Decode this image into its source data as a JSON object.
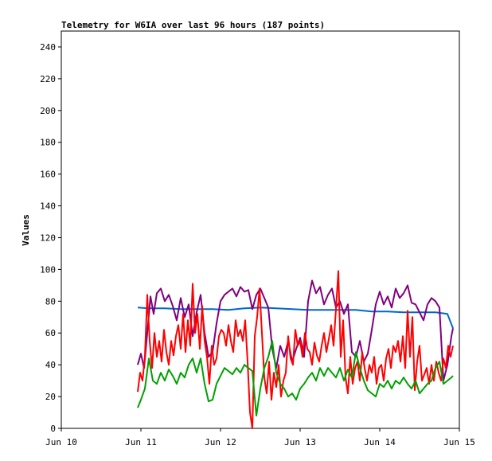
{
  "chart_data": {
    "type": "line",
    "title": "Telemetry for W6IA over last 96 hours (187 points)",
    "ylabel": "Values",
    "xlabel": "",
    "ylim": [
      0,
      250
    ],
    "xlim": [
      0,
      5
    ],
    "x_tick_labels": [
      "Jun 10",
      "Jun 11",
      "Jun 12",
      "Jun 13",
      "Jun 14",
      "Jun 15"
    ],
    "y_ticks": [
      0,
      20,
      40,
      60,
      80,
      100,
      120,
      140,
      160,
      180,
      200,
      220,
      240
    ],
    "grid": false,
    "series": [
      {
        "color": "#0066cc",
        "x": [
          0.96,
          1.1,
          1.3,
          1.5,
          1.7,
          1.9,
          2.1,
          2.3,
          2.5,
          2.7,
          2.9,
          3.1,
          3.3,
          3.5,
          3.7,
          3.9,
          4.1,
          4.3,
          4.5,
          4.7,
          4.85,
          4.92
        ],
        "y": [
          76,
          75.5,
          75.5,
          75,
          75,
          75,
          74.5,
          75.5,
          76,
          75.5,
          75,
          74.5,
          74.5,
          74.5,
          74.5,
          73.5,
          73.5,
          73,
          73,
          73,
          72,
          63
        ]
      },
      {
        "color": "#800080",
        "x": [
          0.96,
          1.0,
          1.04,
          1.08,
          1.12,
          1.16,
          1.2,
          1.25,
          1.3,
          1.35,
          1.4,
          1.45,
          1.5,
          1.55,
          1.6,
          1.65,
          1.7,
          1.75,
          1.8,
          1.85,
          1.9,
          1.95,
          2.0,
          2.05,
          2.1,
          2.15,
          2.2,
          2.25,
          2.3,
          2.35,
          2.4,
          2.45,
          2.5,
          2.55,
          2.6,
          2.65,
          2.7,
          2.75,
          2.8,
          2.85,
          2.9,
          2.95,
          3.0,
          3.05,
          3.1,
          3.15,
          3.2,
          3.25,
          3.3,
          3.35,
          3.4,
          3.45,
          3.5,
          3.55,
          3.6,
          3.65,
          3.7,
          3.75,
          3.8,
          3.85,
          3.9,
          3.95,
          4.0,
          4.05,
          4.1,
          4.15,
          4.2,
          4.25,
          4.3,
          4.35,
          4.4,
          4.45,
          4.5,
          4.55,
          4.6,
          4.65,
          4.7,
          4.75,
          4.8,
          4.85,
          4.9,
          4.92
        ],
        "y": [
          40,
          47,
          38,
          60,
          83,
          72,
          85,
          88,
          80,
          84,
          77,
          68,
          82,
          70,
          78,
          58,
          73,
          84,
          60,
          45,
          48,
          66,
          80,
          84,
          86,
          88,
          83,
          89,
          86,
          87,
          75,
          84,
          88,
          82,
          76,
          50,
          38,
          52,
          45,
          55,
          42,
          50,
          57,
          45,
          80,
          93,
          85,
          89,
          78,
          84,
          88,
          76,
          80,
          72,
          78,
          48,
          45,
          55,
          42,
          47,
          62,
          78,
          86,
          78,
          83,
          76,
          88,
          82,
          85,
          90,
          79,
          78,
          73,
          68,
          78,
          82,
          80,
          76,
          30,
          40,
          58,
          63
        ]
      },
      {
        "color": "#ff0000",
        "x": [
          0.96,
          0.99,
          1.02,
          1.05,
          1.08,
          1.11,
          1.14,
          1.17,
          1.2,
          1.23,
          1.26,
          1.29,
          1.32,
          1.35,
          1.38,
          1.41,
          1.44,
          1.47,
          1.5,
          1.53,
          1.56,
          1.59,
          1.62,
          1.65,
          1.68,
          1.71,
          1.74,
          1.77,
          1.8,
          1.83,
          1.86,
          1.89,
          1.92,
          1.95,
          1.98,
          2.01,
          2.04,
          2.07,
          2.1,
          2.13,
          2.16,
          2.19,
          2.22,
          2.25,
          2.28,
          2.31,
          2.34,
          2.37,
          2.4,
          2.43,
          2.46,
          2.49,
          2.52,
          2.55,
          2.58,
          2.61,
          2.64,
          2.67,
          2.7,
          2.73,
          2.76,
          2.79,
          2.82,
          2.85,
          2.88,
          2.91,
          2.94,
          2.97,
          3.0,
          3.03,
          3.06,
          3.09,
          3.12,
          3.15,
          3.18,
          3.21,
          3.24,
          3.27,
          3.3,
          3.33,
          3.36,
          3.39,
          3.42,
          3.45,
          3.48,
          3.51,
          3.54,
          3.57,
          3.6,
          3.63,
          3.66,
          3.69,
          3.72,
          3.75,
          3.78,
          3.81,
          3.84,
          3.87,
          3.9,
          3.93,
          3.96,
          3.99,
          4.02,
          4.05,
          4.08,
          4.11,
          4.14,
          4.17,
          4.2,
          4.23,
          4.26,
          4.29,
          4.32,
          4.35,
          4.38,
          4.41,
          4.44,
          4.47,
          4.5,
          4.53,
          4.56,
          4.59,
          4.62,
          4.65,
          4.68,
          4.71,
          4.74,
          4.77,
          4.8,
          4.83,
          4.86,
          4.89,
          4.92
        ],
        "y": [
          23,
          35,
          30,
          45,
          84,
          55,
          38,
          60,
          45,
          55,
          42,
          62,
          48,
          40,
          55,
          46,
          58,
          65,
          50,
          72,
          48,
          68,
          52,
          91,
          60,
          72,
          50,
          77,
          55,
          45,
          28,
          52,
          40,
          44,
          58,
          62,
          60,
          52,
          65,
          55,
          48,
          68,
          58,
          62,
          55,
          68,
          42,
          10,
          0,
          58,
          70,
          88,
          60,
          32,
          22,
          42,
          18,
          35,
          26,
          40,
          20,
          30,
          35,
          58,
          44,
          40,
          62,
          52,
          55,
          45,
          60,
          50,
          48,
          40,
          54,
          46,
          42,
          52,
          60,
          48,
          56,
          65,
          52,
          75,
          99,
          45,
          68,
          32,
          22,
          45,
          28,
          38,
          42,
          30,
          48,
          38,
          30,
          40,
          35,
          45,
          28,
          38,
          40,
          30,
          44,
          50,
          38,
          52,
          48,
          55,
          42,
          58,
          38,
          74,
          45,
          70,
          24,
          42,
          52,
          30,
          34,
          38,
          28,
          40,
          30,
          42,
          35,
          30,
          44,
          38,
          52,
          45,
          52
        ]
      },
      {
        "color": "#00a000",
        "x": [
          0.96,
          1.0,
          1.05,
          1.1,
          1.15,
          1.2,
          1.25,
          1.3,
          1.35,
          1.4,
          1.45,
          1.5,
          1.55,
          1.6,
          1.65,
          1.7,
          1.75,
          1.8,
          1.85,
          1.9,
          1.95,
          2.0,
          2.05,
          2.1,
          2.15,
          2.2,
          2.25,
          2.3,
          2.35,
          2.4,
          2.45,
          2.5,
          2.55,
          2.6,
          2.65,
          2.7,
          2.75,
          2.8,
          2.85,
          2.9,
          2.95,
          3.0,
          3.05,
          3.1,
          3.15,
          3.2,
          3.25,
          3.3,
          3.35,
          3.4,
          3.45,
          3.5,
          3.55,
          3.6,
          3.65,
          3.7,
          3.75,
          3.8,
          3.85,
          3.9,
          3.95,
          4.0,
          4.05,
          4.1,
          4.15,
          4.2,
          4.25,
          4.3,
          4.35,
          4.4,
          4.45,
          4.5,
          4.55,
          4.6,
          4.65,
          4.7,
          4.75,
          4.8,
          4.85,
          4.9,
          4.92
        ],
        "y": [
          13,
          18,
          25,
          44,
          30,
          28,
          35,
          30,
          37,
          33,
          28,
          35,
          32,
          40,
          44,
          35,
          44,
          28,
          17,
          18,
          28,
          33,
          38,
          36,
          34,
          38,
          35,
          40,
          38,
          36,
          8,
          25,
          38,
          45,
          55,
          35,
          28,
          25,
          20,
          22,
          18,
          25,
          28,
          32,
          35,
          30,
          38,
          33,
          38,
          35,
          32,
          38,
          30,
          37,
          32,
          48,
          38,
          30,
          24,
          22,
          20,
          28,
          26,
          30,
          25,
          30,
          28,
          32,
          28,
          25,
          30,
          22,
          25,
          28,
          30,
          38,
          42,
          28,
          30,
          32,
          33
        ]
      }
    ]
  }
}
